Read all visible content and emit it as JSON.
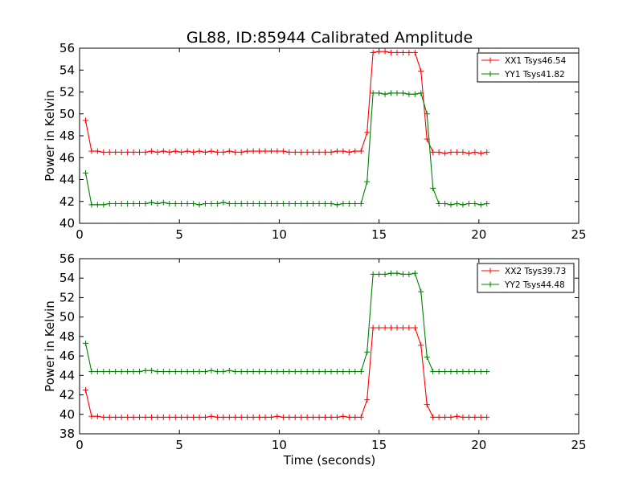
{
  "figure": {
    "title": "GL88, ID:85944 Calibrated Amplitude",
    "xlabel": "Time (seconds)"
  },
  "chart_data": [
    {
      "type": "line",
      "title": "GL88, ID:85944 Calibrated Amplitude",
      "xlabel": "",
      "ylabel": "Power in Kelvin",
      "xlim": [
        0,
        25
      ],
      "ylim": [
        40,
        56
      ],
      "xticks": [
        0,
        5,
        10,
        15,
        20,
        25
      ],
      "yticks": [
        40,
        42,
        44,
        46,
        48,
        50,
        52,
        54,
        56
      ],
      "grid": false,
      "legend_position": "top-right",
      "marker": "+",
      "x": [
        0.3,
        0.6,
        0.9,
        1.2,
        1.5,
        1.8,
        2.1,
        2.4,
        2.7,
        3.0,
        3.3,
        3.6,
        3.9,
        4.2,
        4.5,
        4.8,
        5.1,
        5.4,
        5.7,
        6.0,
        6.3,
        6.6,
        6.9,
        7.2,
        7.5,
        7.8,
        8.1,
        8.4,
        8.7,
        9.0,
        9.3,
        9.6,
        9.9,
        10.2,
        10.5,
        10.8,
        11.1,
        11.4,
        11.7,
        12.0,
        12.3,
        12.6,
        12.9,
        13.2,
        13.5,
        13.8,
        14.1,
        14.4,
        14.7,
        15.0,
        15.3,
        15.6,
        15.9,
        16.2,
        16.5,
        16.8,
        17.1,
        17.4,
        17.7,
        18.0,
        18.3,
        18.6,
        18.9,
        19.2,
        19.5,
        19.8,
        20.1,
        20.4
      ],
      "series": [
        {
          "name": "XX1 Tsys46.54",
          "color": "#ff0000",
          "values": [
            49.4,
            46.6,
            46.6,
            46.5,
            46.5,
            46.5,
            46.5,
            46.5,
            46.5,
            46.5,
            46.5,
            46.6,
            46.5,
            46.6,
            46.5,
            46.6,
            46.5,
            46.6,
            46.5,
            46.6,
            46.5,
            46.6,
            46.5,
            46.5,
            46.6,
            46.5,
            46.5,
            46.6,
            46.6,
            46.6,
            46.6,
            46.6,
            46.6,
            46.6,
            46.5,
            46.5,
            46.5,
            46.5,
            46.5,
            46.5,
            46.5,
            46.5,
            46.6,
            46.6,
            46.5,
            46.6,
            46.6,
            48.3,
            55.6,
            55.7,
            55.7,
            55.6,
            55.6,
            55.6,
            55.6,
            55.6,
            53.9,
            47.7,
            46.5,
            46.5,
            46.4,
            46.5,
            46.5,
            46.5,
            46.4,
            46.5,
            46.4,
            46.5
          ]
        },
        {
          "name": "YY1 Tsys41.82",
          "color": "#008000",
          "values": [
            44.6,
            41.7,
            41.7,
            41.7,
            41.8,
            41.8,
            41.8,
            41.8,
            41.8,
            41.8,
            41.8,
            41.9,
            41.8,
            41.9,
            41.8,
            41.8,
            41.8,
            41.8,
            41.8,
            41.7,
            41.8,
            41.8,
            41.8,
            41.9,
            41.8,
            41.8,
            41.8,
            41.8,
            41.8,
            41.8,
            41.8,
            41.8,
            41.8,
            41.8,
            41.8,
            41.8,
            41.8,
            41.8,
            41.8,
            41.8,
            41.8,
            41.8,
            41.7,
            41.8,
            41.8,
            41.8,
            41.8,
            43.8,
            51.9,
            51.9,
            51.8,
            51.9,
            51.9,
            51.9,
            51.8,
            51.8,
            51.9,
            50.0,
            43.2,
            41.8,
            41.8,
            41.7,
            41.8,
            41.7,
            41.8,
            41.8,
            41.7,
            41.8
          ]
        }
      ]
    },
    {
      "type": "line",
      "title": "",
      "xlabel": "Time (seconds)",
      "ylabel": "Power in Kelvin",
      "xlim": [
        0,
        25
      ],
      "ylim": [
        38,
        56
      ],
      "xticks": [
        0,
        5,
        10,
        15,
        20,
        25
      ],
      "yticks": [
        38,
        40,
        42,
        44,
        46,
        48,
        50,
        52,
        54,
        56
      ],
      "grid": false,
      "legend_position": "top-right",
      "marker": "+",
      "x": [
        0.3,
        0.6,
        0.9,
        1.2,
        1.5,
        1.8,
        2.1,
        2.4,
        2.7,
        3.0,
        3.3,
        3.6,
        3.9,
        4.2,
        4.5,
        4.8,
        5.1,
        5.4,
        5.7,
        6.0,
        6.3,
        6.6,
        6.9,
        7.2,
        7.5,
        7.8,
        8.1,
        8.4,
        8.7,
        9.0,
        9.3,
        9.6,
        9.9,
        10.2,
        10.5,
        10.8,
        11.1,
        11.4,
        11.7,
        12.0,
        12.3,
        12.6,
        12.9,
        13.2,
        13.5,
        13.8,
        14.1,
        14.4,
        14.7,
        15.0,
        15.3,
        15.6,
        15.9,
        16.2,
        16.5,
        16.8,
        17.1,
        17.4,
        17.7,
        18.0,
        18.3,
        18.6,
        18.9,
        19.2,
        19.5,
        19.8,
        20.1,
        20.4
      ],
      "series": [
        {
          "name": "XX2 Tsys39.73",
          "color": "#ff0000",
          "values": [
            42.5,
            39.8,
            39.8,
            39.7,
            39.7,
            39.7,
            39.7,
            39.7,
            39.7,
            39.7,
            39.7,
            39.7,
            39.7,
            39.7,
            39.7,
            39.7,
            39.7,
            39.7,
            39.7,
            39.7,
            39.7,
            39.8,
            39.7,
            39.7,
            39.7,
            39.7,
            39.7,
            39.7,
            39.7,
            39.7,
            39.7,
            39.7,
            39.8,
            39.7,
            39.7,
            39.7,
            39.7,
            39.7,
            39.7,
            39.7,
            39.7,
            39.7,
            39.7,
            39.8,
            39.7,
            39.7,
            39.7,
            41.5,
            48.9,
            48.9,
            48.9,
            48.9,
            48.9,
            48.9,
            48.9,
            48.9,
            47.1,
            41.0,
            39.7,
            39.7,
            39.7,
            39.7,
            39.8,
            39.7,
            39.7,
            39.7,
            39.7,
            39.7
          ]
        },
        {
          "name": "YY2 Tsys44.48",
          "color": "#008000",
          "values": [
            47.3,
            44.4,
            44.4,
            44.4,
            44.4,
            44.4,
            44.4,
            44.4,
            44.4,
            44.4,
            44.5,
            44.5,
            44.4,
            44.4,
            44.4,
            44.4,
            44.4,
            44.4,
            44.4,
            44.4,
            44.4,
            44.5,
            44.4,
            44.4,
            44.5,
            44.4,
            44.4,
            44.4,
            44.4,
            44.4,
            44.4,
            44.4,
            44.4,
            44.4,
            44.4,
            44.4,
            44.4,
            44.4,
            44.4,
            44.4,
            44.4,
            44.4,
            44.4,
            44.4,
            44.4,
            44.4,
            44.4,
            46.4,
            54.4,
            54.4,
            54.4,
            54.5,
            54.5,
            54.4,
            54.4,
            54.5,
            52.6,
            45.9,
            44.4,
            44.4,
            44.4,
            44.4,
            44.4,
            44.4,
            44.4,
            44.4,
            44.4,
            44.4
          ]
        }
      ]
    }
  ]
}
